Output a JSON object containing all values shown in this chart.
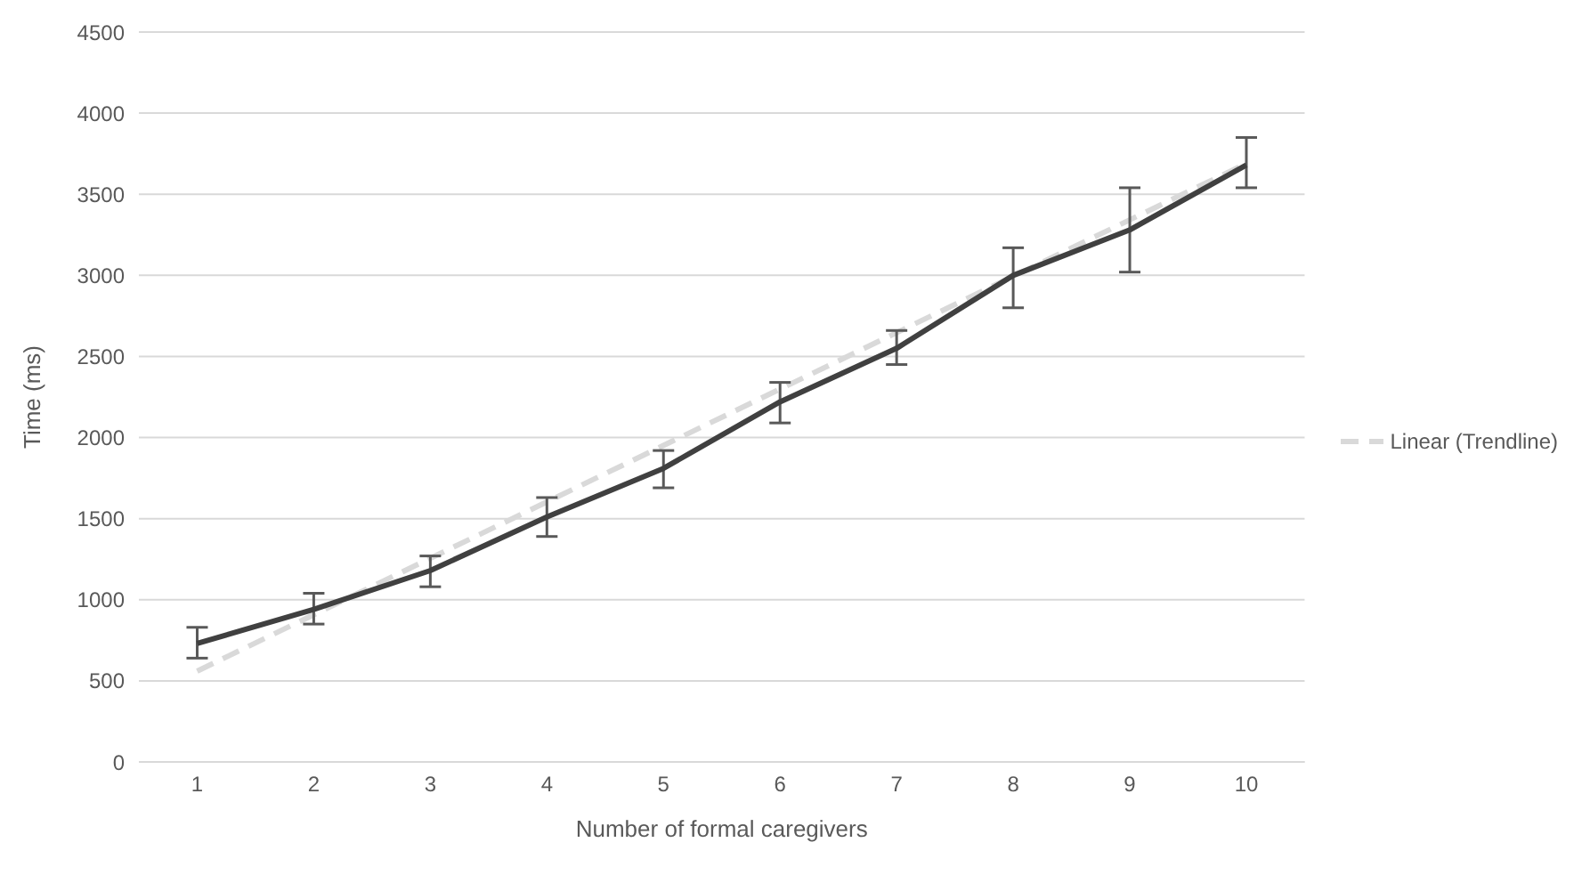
{
  "chart_data": {
    "type": "line",
    "xlabel": "Number of formal caregivers",
    "ylabel": "Time (ms)",
    "x": [
      1,
      2,
      3,
      4,
      5,
      6,
      7,
      8,
      9,
      10
    ],
    "xlim": [
      0.5,
      10.5
    ],
    "xticks": [
      1,
      2,
      3,
      4,
      5,
      6,
      7,
      8,
      9,
      10
    ],
    "ylim": [
      0,
      4500
    ],
    "yticks": [
      0,
      500,
      1000,
      1500,
      2000,
      2500,
      3000,
      3500,
      4000,
      4500
    ],
    "grid": "y",
    "legend": "right",
    "marker": "none",
    "series": [
      {
        "color": "#404040",
        "line_style": "solid",
        "values": [
          730,
          940,
          1180,
          1510,
          1810,
          2220,
          2550,
          3000,
          3280,
          3680
        ],
        "errors": [
          [
            640,
            830
          ],
          [
            850,
            1040
          ],
          [
            1080,
            1270
          ],
          [
            1390,
            1630
          ],
          [
            1690,
            1920
          ],
          [
            2090,
            2340
          ],
          [
            2450,
            2660
          ],
          [
            2800,
            3170
          ],
          [
            3020,
            3540
          ],
          [
            3540,
            3850
          ]
        ]
      },
      {
        "name": "Linear (Trendline)",
        "type": "line",
        "color": "#d9d9d9",
        "line_style": "dashed",
        "x": [
          1,
          10
        ],
        "values": [
          560,
          3690
        ]
      }
    ]
  }
}
